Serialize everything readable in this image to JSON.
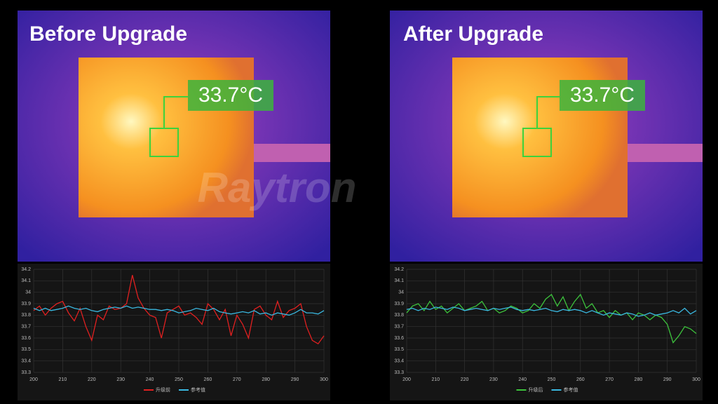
{
  "panels": [
    {
      "title": "Before Upgrade",
      "temperature": "33.7°C"
    },
    {
      "title": "After Upgrade",
      "temperature": "33.7°C"
    }
  ],
  "watermark": "Raytron",
  "chart_data": [
    {
      "type": "line",
      "x": [
        200,
        202,
        204,
        206,
        208,
        210,
        212,
        214,
        216,
        218,
        220,
        222,
        224,
        226,
        228,
        230,
        232,
        234,
        236,
        238,
        240,
        242,
        244,
        246,
        248,
        250,
        252,
        254,
        256,
        258,
        260,
        262,
        264,
        266,
        268,
        270,
        272,
        274,
        276,
        278,
        280,
        282,
        284,
        286,
        288,
        290,
        292,
        294,
        296,
        298,
        300
      ],
      "series": [
        {
          "name": "升级前",
          "color": "#e02020",
          "values": [
            33.84,
            33.88,
            33.8,
            33.86,
            33.9,
            33.92,
            33.82,
            33.75,
            33.86,
            33.7,
            33.58,
            33.8,
            33.76,
            33.88,
            33.85,
            33.86,
            33.9,
            34.15,
            33.95,
            33.86,
            33.8,
            33.78,
            33.6,
            33.82,
            33.85,
            33.88,
            33.8,
            33.82,
            33.78,
            33.72,
            33.9,
            33.85,
            33.76,
            33.85,
            33.62,
            33.8,
            33.72,
            33.6,
            33.85,
            33.88,
            33.8,
            33.76,
            33.92,
            33.78,
            33.84,
            33.86,
            33.9,
            33.7,
            33.58,
            33.55,
            33.62
          ]
        },
        {
          "name": "参考值",
          "color": "#3ab8e0",
          "values": [
            33.86,
            33.84,
            33.86,
            33.84,
            33.85,
            33.86,
            33.88,
            33.86,
            33.85,
            33.86,
            33.84,
            33.83,
            33.85,
            33.86,
            33.87,
            33.86,
            33.88,
            33.86,
            33.87,
            33.86,
            33.85,
            33.85,
            33.84,
            33.85,
            33.84,
            33.82,
            33.83,
            33.84,
            33.86,
            33.85,
            33.84,
            33.86,
            33.83,
            33.82,
            33.81,
            33.82,
            33.83,
            33.82,
            33.84,
            33.81,
            33.82,
            33.8,
            33.82,
            33.81,
            33.8,
            33.82,
            33.85,
            33.82,
            33.82,
            33.81,
            33.84
          ]
        }
      ],
      "xlim": [
        200,
        300
      ],
      "xticks": [
        200,
        210,
        220,
        230,
        240,
        250,
        260,
        270,
        280,
        290,
        300
      ],
      "ylim": [
        33.3,
        34.2
      ],
      "yticks": [
        33.3,
        33.4,
        33.5,
        33.6,
        33.7,
        33.8,
        33.9,
        34,
        34.1,
        34.2
      ],
      "grid": true
    },
    {
      "type": "line",
      "x": [
        200,
        202,
        204,
        206,
        208,
        210,
        212,
        214,
        216,
        218,
        220,
        222,
        224,
        226,
        228,
        230,
        232,
        234,
        236,
        238,
        240,
        242,
        244,
        246,
        248,
        250,
        252,
        254,
        256,
        258,
        260,
        262,
        264,
        266,
        268,
        270,
        272,
        274,
        276,
        278,
        280,
        282,
        284,
        286,
        288,
        290,
        292,
        294,
        296,
        298,
        300
      ],
      "series": [
        {
          "name": "升级后",
          "color": "#3cc23c",
          "values": [
            33.82,
            33.88,
            33.9,
            33.84,
            33.92,
            33.85,
            33.88,
            33.82,
            33.86,
            33.9,
            33.84,
            33.86,
            33.88,
            33.92,
            33.84,
            33.86,
            33.82,
            33.84,
            33.88,
            33.86,
            33.82,
            33.84,
            33.9,
            33.86,
            33.94,
            33.98,
            33.88,
            33.96,
            33.84,
            33.92,
            33.98,
            33.86,
            33.9,
            33.82,
            33.84,
            33.78,
            33.84,
            33.8,
            33.82,
            33.76,
            33.82,
            33.8,
            33.76,
            33.8,
            33.78,
            33.72,
            33.56,
            33.62,
            33.7,
            33.68,
            33.64
          ]
        },
        {
          "name": "参考值",
          "color": "#3ab8e0",
          "values": [
            33.85,
            33.86,
            33.84,
            33.86,
            33.85,
            33.87,
            33.86,
            33.85,
            33.87,
            33.86,
            33.84,
            33.85,
            33.86,
            33.85,
            33.84,
            33.86,
            33.85,
            33.86,
            33.87,
            33.85,
            33.84,
            33.85,
            33.84,
            33.85,
            33.86,
            33.84,
            33.83,
            33.85,
            33.84,
            33.85,
            33.84,
            33.82,
            33.84,
            33.82,
            33.8,
            33.82,
            33.81,
            33.8,
            33.82,
            33.81,
            33.79,
            33.8,
            33.82,
            33.8,
            33.81,
            33.82,
            33.84,
            33.82,
            33.86,
            33.81,
            33.84
          ]
        }
      ],
      "xlim": [
        200,
        300
      ],
      "xticks": [
        200,
        210,
        220,
        230,
        240,
        250,
        260,
        270,
        280,
        290,
        300
      ],
      "ylim": [
        33.3,
        34.2
      ],
      "yticks": [
        33.3,
        33.4,
        33.5,
        33.6,
        33.7,
        33.8,
        33.9,
        34,
        34.1,
        34.2
      ],
      "grid": true
    }
  ]
}
